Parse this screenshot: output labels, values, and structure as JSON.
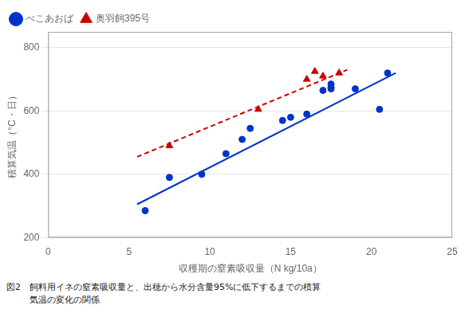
{
  "chart_data": {
    "type": "scatter",
    "xlabel": "収穫期の窒素吸収量（N kg/10a）",
    "ylabel": "積算気温（°C・日）",
    "xlim": [
      0,
      25
    ],
    "ylim": [
      200,
      850
    ],
    "xticks": [
      0,
      5,
      10,
      15,
      20,
      25
    ],
    "yticks": [
      200,
      400,
      600,
      800
    ],
    "grid": "y",
    "legend": "upper left",
    "caption": [
      "図2　",
      "飼料用イネの窒素吸収量と、出穂から水分含量95%に低下するまでの積算",
      "気温の変化の関係"
    ],
    "series": [
      {
        "type": "line",
        "color": "#0033cc",
        "line_style": "solid",
        "x": [
          5.5,
          21.5
        ],
        "values": [
          305,
          720
        ]
      },
      {
        "type": "line",
        "color": "#cc0000",
        "line_style": "dashed",
        "x": [
          5.5,
          18.5
        ],
        "values": [
          455,
          730
        ]
      },
      {
        "name": "べこあおば",
        "type": "scatter",
        "color": "#0033cc",
        "marker": "circle",
        "x": [
          6.0,
          7.5,
          9.5,
          11.0,
          12.0,
          12.5,
          14.5,
          15.0,
          16.0,
          17.0,
          17.5,
          17.5,
          19.0,
          20.5,
          21.0
        ],
        "values": [
          285,
          390,
          400,
          465,
          510,
          545,
          570,
          580,
          590,
          665,
          670,
          685,
          670,
          605,
          720
        ]
      },
      {
        "name": "奥羽飼395号",
        "type": "scatter",
        "color": "#cc0000",
        "marker": "triangle",
        "x": [
          7.5,
          13.0,
          16.0,
          16.5,
          17.0,
          17.5,
          18.0
        ],
        "values": [
          490,
          605,
          700,
          725,
          710,
          680,
          720
        ]
      }
    ]
  }
}
